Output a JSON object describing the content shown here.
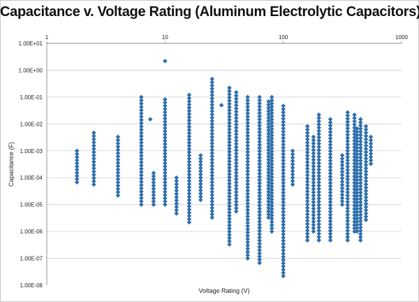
{
  "chart_data": {
    "type": "scatter",
    "title": "Capacitance v. Voltage Rating (Aluminum Electrolytic Capacitors)",
    "xlabel": "Voltage Rating (V)",
    "ylabel": "Capacitance (F)",
    "x_scale": "log",
    "y_scale": "log",
    "xlim": [
      1,
      1000
    ],
    "ylim": [
      1e-08,
      10
    ],
    "x_ticks": [
      "1",
      "10",
      "100",
      "1000"
    ],
    "y_ticks": [
      "1.00E-08",
      "1.00E-07",
      "1.00E-06",
      "1.00E-05",
      "1.00E-04",
      "1.00E-03",
      "1.00E-02",
      "1.00E-01",
      "1.00E+00",
      "1.00E+01"
    ],
    "grid": "horizontal",
    "marker": "diamond",
    "marker_color": "#2f6fac",
    "columns": [
      {
        "v": 1.8,
        "cmin": 6.8e-05,
        "cmax": 0.001
      },
      {
        "v": 2.5,
        "cmin": 5.6e-05,
        "cmax": 0.0047
      },
      {
        "v": 4,
        "cmin": 2.2e-05,
        "cmax": 0.0033
      },
      {
        "v": 6.3,
        "cmin": 1e-05,
        "cmax": 0.1
      },
      {
        "v": 7.5,
        "cmin": 0.015,
        "cmax": 0.015
      },
      {
        "v": 8,
        "cmin": 1e-05,
        "cmax": 0.00015
      },
      {
        "v": 10,
        "cmin": 1e-05,
        "cmax": 0.082
      },
      {
        "v": 12.5,
        "cmin": 4.7e-06,
        "cmax": 0.0001
      },
      {
        "v": 16,
        "cmin": 2.2e-06,
        "cmax": 0.12
      },
      {
        "v": 20,
        "cmin": 1.5e-05,
        "cmax": 0.00068
      },
      {
        "v": 25,
        "cmin": 3.3e-06,
        "cmax": 0.47
      },
      {
        "v": 30,
        "cmin": 0.05,
        "cmax": 0.05
      },
      {
        "v": 35,
        "cmin": 3.3e-07,
        "cmax": 0.22
      },
      {
        "v": 40,
        "cmin": 5.6e-06,
        "cmax": 0.15
      },
      {
        "v": 50,
        "cmin": 1e-07,
        "cmax": 0.1
      },
      {
        "v": 63,
        "cmin": 6.8e-08,
        "cmax": 0.1
      },
      {
        "v": 75,
        "cmin": 3.3e-06,
        "cmax": 0.068
      },
      {
        "v": 80,
        "cmin": 1e-06,
        "cmax": 0.1
      },
      {
        "v": 100,
        "cmin": 2.2e-08,
        "cmax": 0.047
      },
      {
        "v": 120,
        "cmin": 5.6e-05,
        "cmax": 0.001
      },
      {
        "v": 160,
        "cmin": 4.7e-07,
        "cmax": 0.0082
      },
      {
        "v": 180,
        "cmin": 1e-06,
        "cmax": 0.0033
      },
      {
        "v": 200,
        "cmin": 4.7e-07,
        "cmax": 0.022
      },
      {
        "v": 250,
        "cmin": 4.7e-07,
        "cmax": 0.015
      },
      {
        "v": 315,
        "cmin": 1e-05,
        "cmax": 0.00068
      },
      {
        "v": 350,
        "cmin": 4.7e-07,
        "cmax": 0.027
      },
      {
        "v": 400,
        "cmin": 1e-06,
        "cmax": 0.022
      },
      {
        "v": 420,
        "cmin": 1e-06,
        "cmax": 0.0068
      },
      {
        "v": 450,
        "cmin": 4.7e-07,
        "cmax": 0.015
      },
      {
        "v": 500,
        "cmin": 2.7e-06,
        "cmax": 0.0082
      },
      {
        "v": 550,
        "cmin": 0.00033,
        "cmax": 0.0033
      }
    ],
    "outliers": [
      {
        "x": 10,
        "y": 2.2
      }
    ]
  }
}
